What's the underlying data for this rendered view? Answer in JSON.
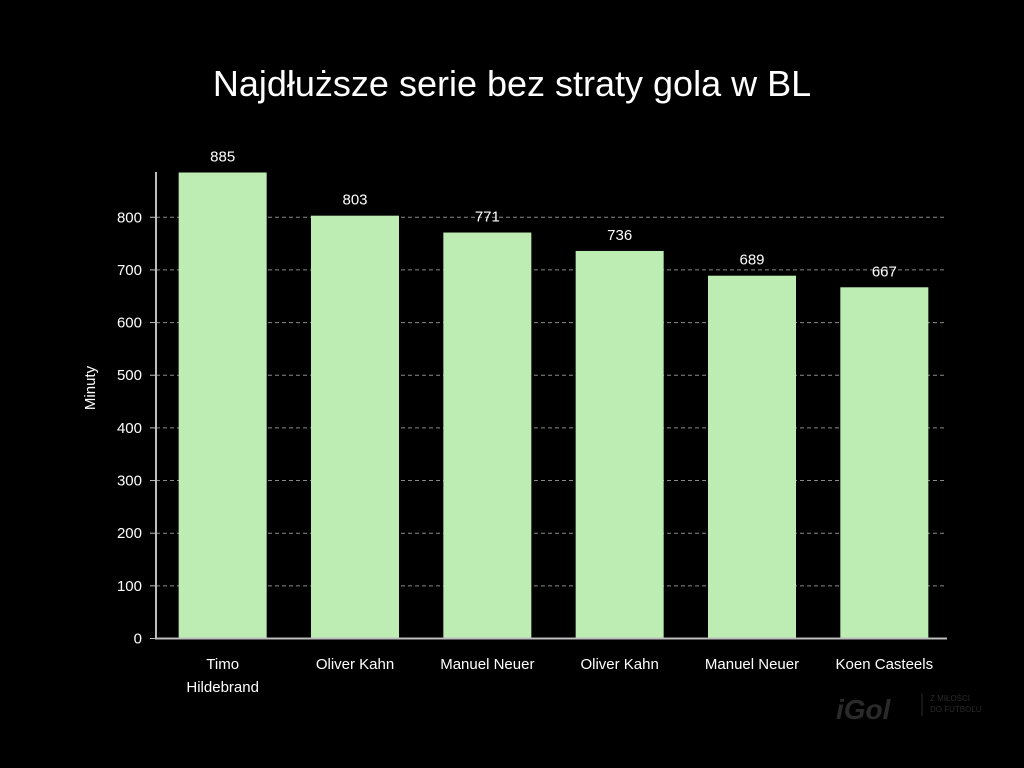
{
  "chart_data": {
    "type": "bar",
    "title": "Najdłuższe serie bez straty gola w BL",
    "xlabel": "",
    "ylabel": "Minuty",
    "categories": [
      [
        "Timo",
        "Hildebrand"
      ],
      [
        "Oliver Kahn"
      ],
      [
        "Manuel Neuer"
      ],
      [
        "Oliver Kahn"
      ],
      [
        "Manuel Neuer"
      ],
      [
        "Koen Casteels"
      ]
    ],
    "values": [
      885,
      803,
      771,
      736,
      689,
      667
    ],
    "ylim": [
      0,
      885
    ],
    "yticks": [
      0,
      100,
      200,
      300,
      400,
      500,
      600,
      700,
      800
    ],
    "grid": true,
    "bar_color": "#bdedb3",
    "background": "#000000"
  },
  "watermark": {
    "brand": "iGol",
    "tagline": [
      "Z MIŁOŚCI",
      "DO FUTBOLU"
    ]
  }
}
